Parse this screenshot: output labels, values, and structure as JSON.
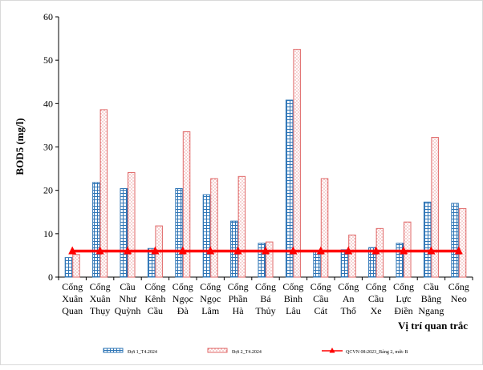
{
  "chart_data": {
    "type": "bar",
    "title": "",
    "ylabel": "BOD5 (mg/l)",
    "xlabel": "Vị trí quan trắc",
    "ylim": [
      0,
      60
    ],
    "yticks": [
      0,
      10,
      20,
      30,
      40,
      50,
      60
    ],
    "grid": false,
    "legend_position": "bottom",
    "categories": [
      [
        "Cống",
        "Xuân",
        "Quan"
      ],
      [
        "Cống",
        "Xuân",
        "Thụy"
      ],
      [
        "Cầu",
        "Như",
        "Quỳnh"
      ],
      [
        "Cống",
        "Kênh",
        "Cầu"
      ],
      [
        "Cống",
        "Ngọc",
        "Đà"
      ],
      [
        "Cống",
        "Ngọc",
        "Lâm"
      ],
      [
        "Cống",
        "Phần",
        "Hà"
      ],
      [
        "Cống",
        "Bá",
        "Thủy"
      ],
      [
        "Cống",
        "Bình",
        "Lâu"
      ],
      [
        "Cống",
        "Cầu",
        "Cát"
      ],
      [
        "Cống",
        "An",
        "Thổ"
      ],
      [
        "Cống",
        "Cầu",
        "Xe"
      ],
      [
        "Cống",
        "Lực",
        "Điền"
      ],
      [
        "Cầu",
        "Bằng",
        "Ngang"
      ],
      [
        "Cống",
        "Neo"
      ]
    ],
    "series": [
      {
        "name": "Đợt 1_T4.2024",
        "kind": "bar",
        "color": "#2e75b6",
        "pattern": "grid",
        "values": [
          4.5,
          21.8,
          20.4,
          6.6,
          20.4,
          19.0,
          12.9,
          7.8,
          40.8,
          5.8,
          6.3,
          6.8,
          7.8,
          17.3,
          17.0
        ]
      },
      {
        "name": "Đợt 2_T4.2024",
        "kind": "bar",
        "color": "#e06666",
        "pattern": "dots",
        "values": [
          5.2,
          38.6,
          24.1,
          11.8,
          33.5,
          22.7,
          23.2,
          8.1,
          52.5,
          22.7,
          9.7,
          11.2,
          12.7,
          32.2,
          15.8
        ]
      },
      {
        "name": "QCVN 08:2023_Bảng 2, mức B",
        "kind": "line",
        "color": "#ff0000",
        "marker": "triangle",
        "values": [
          6,
          6,
          6,
          6,
          6,
          6,
          6,
          6,
          6,
          6,
          6,
          6,
          6,
          6,
          6
        ]
      }
    ]
  }
}
